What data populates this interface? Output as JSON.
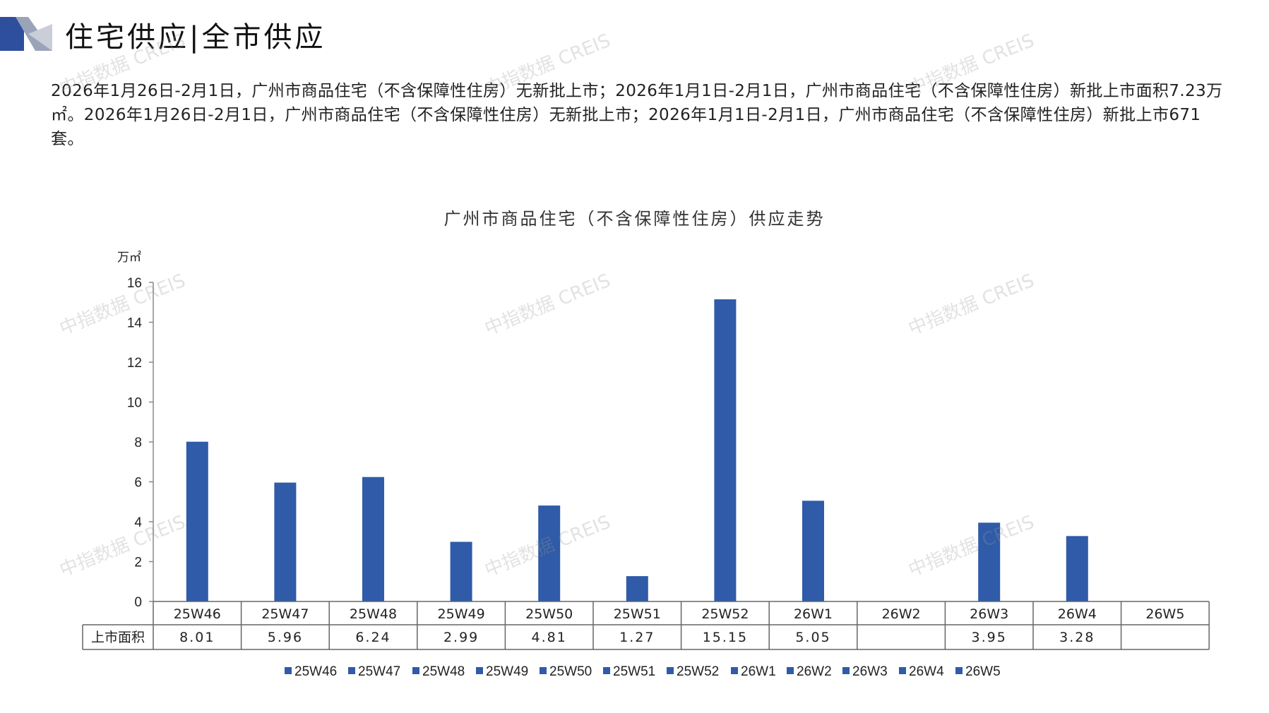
{
  "page": {
    "title": "住宅供应|全市供应",
    "summary": "2026年1月26日-2月1日，广州市商品住宅（不含保障性住房）无新批上市；2026年1月1日-2月1日，广州市商品住宅（不含保障性住房）新批上市面积7.23万㎡。2026年1月26日-2月1日，广州市商品住宅（不含保障性住房）无新批上市；2026年1月1日-2月1日，广州市商品住宅（不含保障性住房）新批上市671套。",
    "watermark": "中指数据 CREIS"
  },
  "colors": {
    "bar": "#2f5ba8",
    "logo_blue": "#2e4f9e",
    "logo_gray": "#9aa4b8"
  },
  "chart_data": {
    "type": "bar",
    "title": "广州市商品住宅（不含保障性住房）供应走势",
    "unit": "万㎡",
    "categories": [
      "25W46",
      "25W47",
      "25W48",
      "25W49",
      "25W50",
      "25W51",
      "25W52",
      "26W1",
      "26W2",
      "26W3",
      "26W4",
      "26W5"
    ],
    "series": [
      {
        "name": "上市面积",
        "values": [
          8.01,
          5.96,
          6.24,
          2.99,
          4.81,
          1.27,
          15.15,
          5.05,
          null,
          3.95,
          3.28,
          null
        ]
      }
    ],
    "value_labels": [
      "8.01",
      "5.96",
      "6.24",
      "2.99",
      "4.81",
      "1.27",
      "15.15",
      "5.05",
      "",
      "3.95",
      "3.28",
      ""
    ],
    "ylim": [
      0,
      16
    ],
    "yticks": [
      0,
      2,
      4,
      6,
      8,
      10,
      12,
      14,
      16
    ],
    "grid": false,
    "legend": {
      "position": "bottom",
      "entries": [
        "25W46",
        "25W47",
        "25W48",
        "25W49",
        "25W50",
        "25W51",
        "25W52",
        "26W1",
        "26W2",
        "26W3",
        "26W4",
        "26W5"
      ]
    },
    "data_table": true
  }
}
